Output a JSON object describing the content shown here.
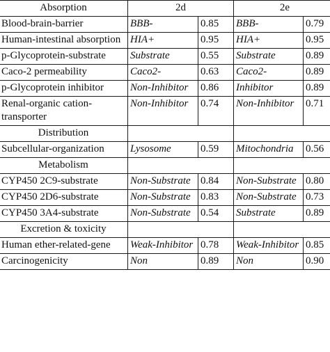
{
  "header": {
    "col_property": "Absorption",
    "col_compound_1": "2d",
    "col_compound_2": "2e"
  },
  "rows": [
    {
      "type": "data",
      "property": "Blood-brain-barrier",
      "pred_2d": "BBB-",
      "prob_2d": "0.85",
      "pred_2e": "BBB-",
      "prob_2e": "0.79"
    },
    {
      "type": "data",
      "property": "Human-intestinal absorption",
      "pred_2d": "HIA+",
      "prob_2d": "0.95",
      "pred_2e": "HIA+",
      "prob_2e": "0.95"
    },
    {
      "type": "data",
      "property": "p-Glycoprotein-substrate",
      "pred_2d": "Substrate",
      "prob_2d": "0.55",
      "pred_2e": "Substrate",
      "prob_2e": "0.89"
    },
    {
      "type": "data",
      "property": "Caco-2 permeability",
      "pred_2d": "Caco2-",
      "prob_2d": "0.63",
      "pred_2e": "Caco2-",
      "prob_2e": "0.89"
    },
    {
      "type": "data",
      "property": "p-Glycoprotein inhibitor",
      "pred_2d": "Non-Inhibitor",
      "prob_2d": "0.86",
      "pred_2e": "Inhibitor",
      "prob_2e": "0.89"
    },
    {
      "type": "data",
      "property": "Renal-organic cation-transporter",
      "pred_2d": "Non-Inhibitor",
      "prob_2d": "0.74",
      "pred_2e": "Non-Inhibitor",
      "prob_2e": "0.71"
    },
    {
      "type": "section",
      "label": "Distribution"
    },
    {
      "type": "data",
      "property": "Subcellular-organization",
      "pred_2d": "Lysosome",
      "prob_2d": "0.59",
      "pred_2e": "Mitochondria",
      "prob_2e": "0.56"
    },
    {
      "type": "section",
      "label": "Metabolism"
    },
    {
      "type": "data",
      "property": "CYP450 2C9-substrate",
      "pred_2d": "Non-Substrate",
      "prob_2d": "0.84",
      "pred_2e": "Non-Substrate",
      "prob_2e": "0.80"
    },
    {
      "type": "data",
      "property": "CYP450 2D6-substrate",
      "pred_2d": "Non-Substrate",
      "prob_2d": "0.83",
      "pred_2e": "Non-Substrate",
      "prob_2e": "0.73"
    },
    {
      "type": "data",
      "property": "CYP450 3A4-substrate",
      "pred_2d": "Non-Substrate",
      "prob_2d": "0.54",
      "pred_2e": "Substrate",
      "prob_2e": "0.89"
    },
    {
      "type": "section",
      "label": "Excretion & toxicity"
    },
    {
      "type": "data",
      "property": "Human ether-related-gene",
      "pred_2d": "Weak-Inhibitor",
      "prob_2d": "0.78",
      "pred_2e": "Weak-Inhibitor",
      "prob_2e": "0.85"
    },
    {
      "type": "data",
      "property": "Carcinogenicity",
      "pred_2d": "Non",
      "prob_2d": "0.89",
      "pred_2e": "Non",
      "prob_2e": "0.90"
    }
  ]
}
